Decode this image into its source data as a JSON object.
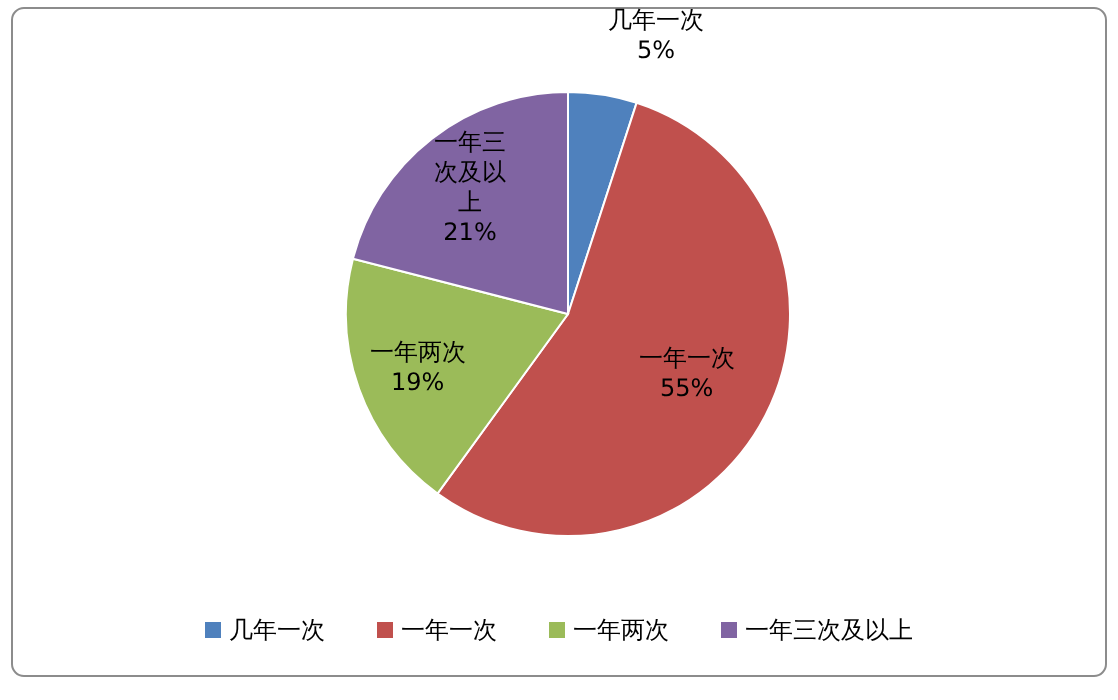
{
  "chart_data": {
    "type": "pie",
    "categories": [
      "几年一次",
      "一年一次",
      "一年两次",
      "一年三次及以上"
    ],
    "values": [
      5,
      55,
      19,
      21
    ],
    "value_labels": [
      "5%",
      "55%",
      "19%",
      "21%"
    ],
    "colors": [
      "#4f81bd",
      "#c0504d",
      "#9bbb59",
      "#8064a2"
    ],
    "legend": "bottom"
  }
}
